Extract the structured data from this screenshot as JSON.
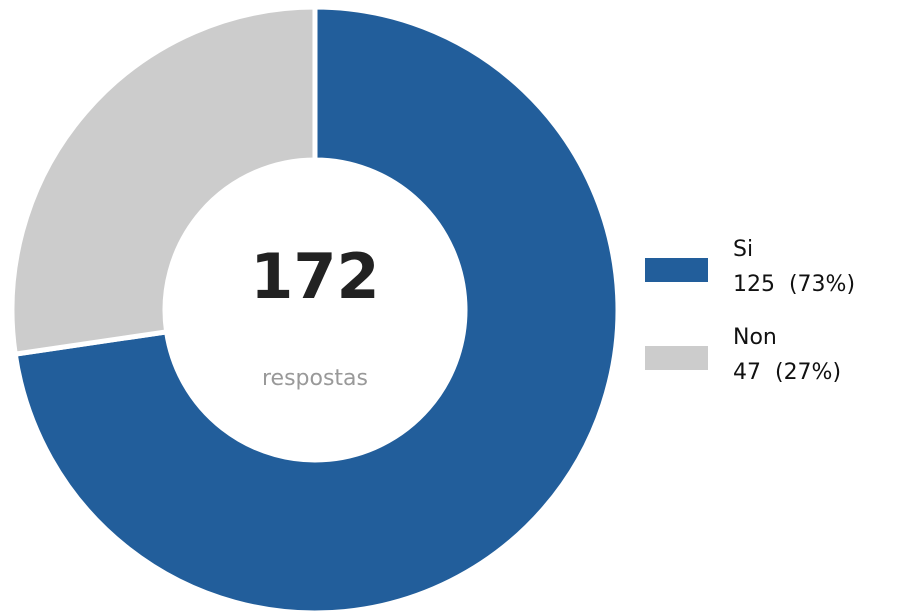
{
  "chart_data": {
    "type": "donut",
    "categories": [
      "Si",
      "Non"
    ],
    "values": [
      125,
      47
    ],
    "value_labels": [
      "125  (73%)",
      "47  (27%)"
    ],
    "colors": [
      "#225e9b",
      "#cccccc"
    ],
    "total": 172,
    "center_label": "respostas",
    "legend": "right"
  }
}
